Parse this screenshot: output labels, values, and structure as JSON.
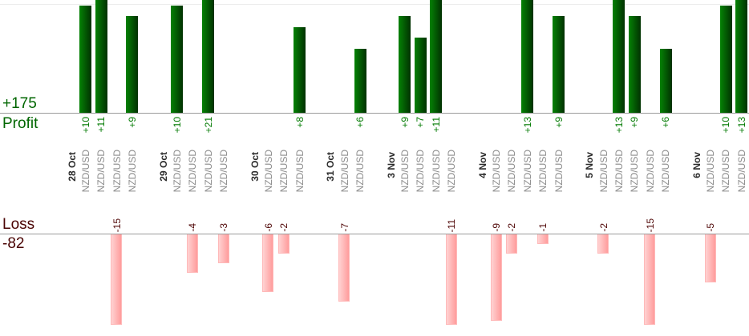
{
  "chart_data": {
    "type": "bar",
    "description": "Daily trade profit/loss bar chart, profits plotted up from upper axis, losses plotted down from lower axis",
    "instrument": "NZD/USD",
    "profit_total_label": "+175",
    "profit_axis_label": "Profit",
    "loss_axis_label": "Loss",
    "loss_total_label": "-82",
    "profit_color_hex": "#026002",
    "loss_color_hex": "#ffaaaa",
    "profit_text_color_hex": "#007a00",
    "loss_text_color_hex": "#4f0606",
    "layout": {
      "grid": "single faint top gridline",
      "value_labels": "rotated 90deg",
      "profit_axis_clipped_above": 10.5,
      "loss_axis_clipped_below": 9.4
    },
    "groups": [
      {
        "date": "28 Oct",
        "trades": [
          {
            "symbol": "NZD/USD",
            "value": 10,
            "label": "+10"
          },
          {
            "symbol": "NZD/USD",
            "value": 11,
            "label": "+11"
          },
          {
            "symbol": "NZD/USD",
            "value": -15,
            "label": "-15"
          },
          {
            "symbol": "NZD/USD",
            "value": 9,
            "label": "+9"
          }
        ]
      },
      {
        "date": "29 Oct",
        "trades": [
          {
            "symbol": "NZD/USD",
            "value": 10,
            "label": "+10"
          },
          {
            "symbol": "NZD/USD",
            "value": -4,
            "label": "-4"
          },
          {
            "symbol": "NZD/USD",
            "value": 21,
            "label": "+21"
          },
          {
            "symbol": "NZD/USD",
            "value": -3,
            "label": "-3"
          }
        ]
      },
      {
        "date": "30 Oct",
        "trades": [
          {
            "symbol": "NZD/USD",
            "value": -6,
            "label": "-6"
          },
          {
            "symbol": "NZD/USD",
            "value": -2,
            "label": "-2"
          },
          {
            "symbol": "NZD/USD",
            "value": 8,
            "label": "+8"
          }
        ]
      },
      {
        "date": "31 Oct",
        "trades": [
          {
            "symbol": "NZD/USD",
            "value": -7,
            "label": "-7"
          },
          {
            "symbol": "NZD/USD",
            "value": 6,
            "label": "+6"
          }
        ]
      },
      {
        "date": "3 Nov",
        "trades": [
          {
            "symbol": "NZD/USD",
            "value": 9,
            "label": "+9"
          },
          {
            "symbol": "NZD/USD",
            "value": 7,
            "label": "+7"
          },
          {
            "symbol": "NZD/USD",
            "value": 11,
            "label": "+11"
          },
          {
            "symbol": "NZD/USD",
            "value": -11,
            "label": "-11"
          }
        ]
      },
      {
        "date": "4 Nov",
        "trades": [
          {
            "symbol": "NZD/USD",
            "value": -9,
            "label": "-9"
          },
          {
            "symbol": "NZD/USD",
            "value": -2,
            "label": "-2"
          },
          {
            "symbol": "NZD/USD",
            "value": 13,
            "label": "+13"
          },
          {
            "symbol": "NZD/USD",
            "value": -1,
            "label": "-1"
          },
          {
            "symbol": "NZD/USD",
            "value": 9,
            "label": "+9"
          }
        ]
      },
      {
        "date": "5 Nov",
        "trades": [
          {
            "symbol": "NZD/USD",
            "value": -2,
            "label": "-2"
          },
          {
            "symbol": "NZD/USD",
            "value": 13,
            "label": "+13"
          },
          {
            "symbol": "NZD/USD",
            "value": 9,
            "label": "+9"
          },
          {
            "symbol": "NZD/USD",
            "value": -15,
            "label": "-15"
          },
          {
            "symbol": "NZD/USD",
            "value": 6,
            "label": "+6"
          }
        ]
      },
      {
        "date": "6 Nov",
        "trades": [
          {
            "symbol": "NZD/USD",
            "value": -5,
            "label": "-5"
          },
          {
            "symbol": "NZD/USD",
            "value": 10,
            "label": "+10"
          },
          {
            "symbol": "NZD/USD",
            "value": 13,
            "label": "+13"
          }
        ]
      }
    ]
  }
}
